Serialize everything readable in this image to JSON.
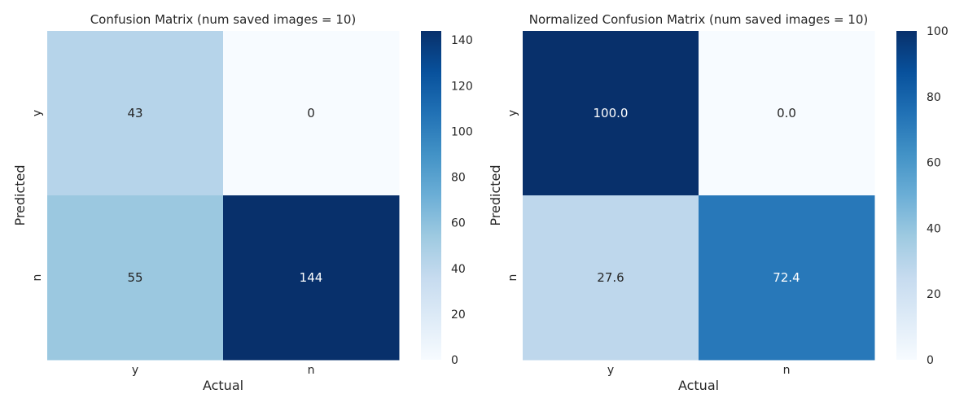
{
  "chart_data": [
    {
      "type": "heatmap",
      "title": "Confusion Matrix (num saved images = 10)",
      "xlabel": "Actual",
      "ylabel": "Predicted",
      "x_categories": [
        "y",
        "n"
      ],
      "y_categories": [
        "y",
        "n"
      ],
      "values": [
        [
          43,
          0
        ],
        [
          55,
          144
        ]
      ],
      "value_labels": [
        [
          "43",
          "0"
        ],
        [
          "55",
          "144"
        ]
      ],
      "colormap": "Blues",
      "color_range": [
        0,
        144
      ],
      "colorbar": {
        "ticks": [
          0,
          20,
          40,
          60,
          80,
          100,
          120,
          140
        ],
        "tick_labels": [
          "0",
          "20",
          "40",
          "60",
          "80",
          "100",
          "120",
          "140"
        ]
      },
      "grid": false
    },
    {
      "type": "heatmap",
      "title": "Normalized Confusion Matrix (num saved images = 10)",
      "xlabel": "Actual",
      "ylabel": "Predicted",
      "x_categories": [
        "y",
        "n"
      ],
      "y_categories": [
        "y",
        "n"
      ],
      "values": [
        [
          100.0,
          0.0
        ],
        [
          27.6,
          72.4
        ]
      ],
      "value_labels": [
        [
          "100.0",
          "0.0"
        ],
        [
          "27.6",
          "72.4"
        ]
      ],
      "colormap": "Blues",
      "color_range": [
        0,
        100
      ],
      "colorbar": {
        "ticks": [
          0,
          20,
          40,
          60,
          80,
          100
        ],
        "tick_labels": [
          "0",
          "20",
          "40",
          "60",
          "80",
          "100"
        ]
      },
      "grid": false
    }
  ]
}
